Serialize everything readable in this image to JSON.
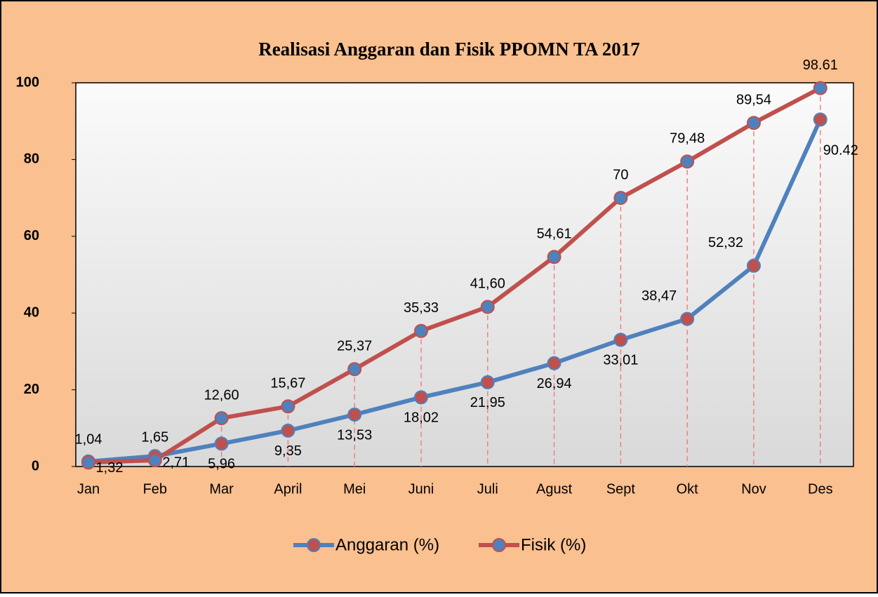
{
  "chart_data": {
    "type": "line",
    "title": "Realisasi Anggaran dan Fisik PPOMN TA 2017",
    "categories": [
      "Jan",
      "Feb",
      "Mar",
      "April",
      "Mei",
      "Juni",
      "Juli",
      "Agust",
      "Sept",
      "Okt",
      "Nov",
      "Des"
    ],
    "series": [
      {
        "name": "Anggaran (%)",
        "color": "#4f81bd",
        "marker_color": "#c0504d",
        "values": [
          1.32,
          2.71,
          5.96,
          9.35,
          13.53,
          18.02,
          21.95,
          26.94,
          33.01,
          38.47,
          52.32,
          90.42
        ],
        "value_labels": [
          "1,32",
          "2,71",
          "5,96",
          "9,35",
          "13,53",
          "18,02",
          "21,95",
          "26,94",
          "33,01",
          "38,47",
          "52,32",
          "90.42"
        ]
      },
      {
        "name": "Fisik (%)",
        "color": "#c0504d",
        "marker_color": "#4f81bd",
        "values": [
          1.04,
          1.65,
          12.6,
          15.67,
          25.37,
          35.33,
          41.6,
          54.61,
          70,
          79.48,
          89.54,
          98.61
        ],
        "value_labels": [
          "1,04",
          "1,65",
          "12,60",
          "15,67",
          "25,37",
          "35,33",
          "41,60",
          "54,61",
          "70",
          "79,48",
          "89,54",
          "98.61"
        ]
      }
    ],
    "ylim": [
      0,
      100
    ],
    "yticks": [
      0,
      20,
      40,
      60,
      80,
      100
    ],
    "legend": "bottom"
  }
}
